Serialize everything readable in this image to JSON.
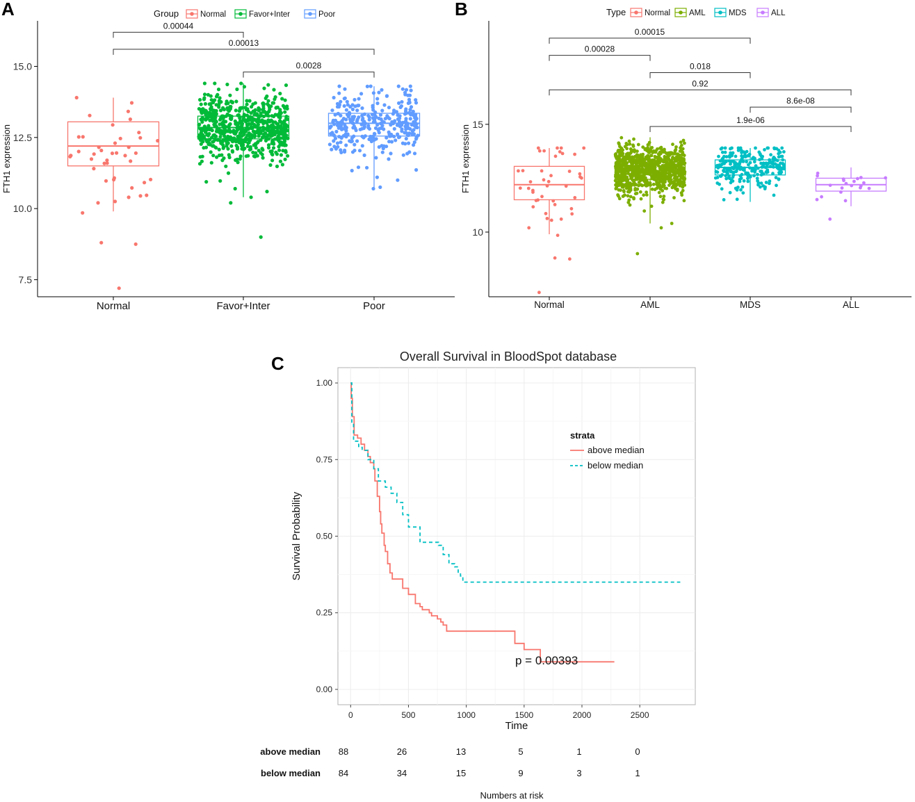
{
  "chart_data": [
    {
      "panel": "A",
      "type": "boxplot",
      "ylabel": "FTH1 expression",
      "ylim": [
        6.9,
        16.6
      ],
      "yticks": [
        "7.5",
        "10.0",
        "12.5",
        "15.0"
      ],
      "ytick_values": [
        7.5,
        10.0,
        12.5,
        15.0
      ],
      "legend": {
        "title": "Group",
        "position": "top",
        "entries": [
          "Normal",
          "Favor+Inter",
          "Poor"
        ]
      },
      "colors": [
        "#f8766d",
        "#00ba38",
        "#619cff"
      ],
      "groups": [
        {
          "name": "Normal",
          "q1": 11.5,
          "median": 12.2,
          "q3": 13.05,
          "lower": 9.9,
          "upper": 13.9,
          "n_points": 40,
          "extra_points": [
            7.2,
            8.75,
            8.8,
            9.85,
            10.2,
            10.25
          ]
        },
        {
          "name": "Favor+Inter",
          "q1": 12.45,
          "median": 12.85,
          "q3": 13.25,
          "lower": 10.4,
          "upper": 14.4,
          "n_points": 700,
          "extra_points": [
            9.0,
            10.2,
            10.4,
            10.6,
            10.7
          ]
        },
        {
          "name": "Poor",
          "q1": 12.55,
          "median": 13.0,
          "q3": 13.35,
          "lower": 10.7,
          "upper": 14.3,
          "n_points": 320,
          "extra_points": [
            10.7,
            10.75,
            11.0
          ]
        }
      ],
      "comparisons": [
        {
          "from": 0,
          "to": 1,
          "label": "0.00044",
          "y": 16.2
        },
        {
          "from": 0,
          "to": 2,
          "label": "0.00013",
          "y": 15.6
        },
        {
          "from": 1,
          "to": 2,
          "label": "0.0028",
          "y": 14.8
        }
      ]
    },
    {
      "panel": "B",
      "type": "boxplot",
      "ylabel": "FTH1 expression",
      "ylim": [
        7.0,
        19.8
      ],
      "yticks": [
        "10",
        "15"
      ],
      "ytick_values": [
        10,
        15
      ],
      "legend": {
        "title": "Type",
        "position": "top",
        "entries": [
          "Normal",
          "AML",
          "MDS",
          "ALL"
        ]
      },
      "colors": [
        "#f8766d",
        "#7cae00",
        "#00bfc4",
        "#c77cff"
      ],
      "groups": [
        {
          "name": "Normal",
          "q1": 11.5,
          "median": 12.2,
          "q3": 13.05,
          "lower": 9.9,
          "upper": 13.9,
          "n_points": 40,
          "extra_points": [
            7.2,
            8.75,
            8.8,
            9.85,
            10.2
          ]
        },
        {
          "name": "AML",
          "q1": 12.45,
          "median": 12.85,
          "q3": 13.25,
          "lower": 10.4,
          "upper": 14.4,
          "n_points": 900,
          "extra_points": [
            9.0,
            10.2,
            10.4
          ]
        },
        {
          "name": "MDS",
          "q1": 12.65,
          "median": 13.0,
          "q3": 13.35,
          "lower": 11.4,
          "upper": 13.9,
          "n_points": 260,
          "extra_points": []
        },
        {
          "name": "ALL",
          "q1": 11.9,
          "median": 12.2,
          "q3": 12.5,
          "lower": 11.2,
          "upper": 13.0,
          "n_points": 20,
          "extra_points": [
            10.6
          ]
        }
      ],
      "comparisons": [
        {
          "from": 0,
          "to": 2,
          "label": "0.00015",
          "y": 19.0
        },
        {
          "from": 0,
          "to": 1,
          "label": "0.00028",
          "y": 18.2
        },
        {
          "from": 1,
          "to": 2,
          "label": "0.018",
          "y": 17.4
        },
        {
          "from": 0,
          "to": 3,
          "label": "0.92",
          "y": 16.6
        },
        {
          "from": 2,
          "to": 3,
          "label": "8.6e-08",
          "y": 15.8
        },
        {
          "from": 1,
          "to": 3,
          "label": "1.9e-06",
          "y": 14.9
        }
      ]
    },
    {
      "panel": "C",
      "type": "line",
      "title": "Overall Survival in BloodSpot database",
      "xlabel": "Time",
      "ylabel": "Survival Probability",
      "xlim": [
        -110,
        2980
      ],
      "ylim": [
        -0.05,
        1.05
      ],
      "xticks": [
        0,
        500,
        1000,
        1500,
        2000,
        2500
      ],
      "xtick_labels": [
        "0",
        "500",
        "1000",
        "1500",
        "2000",
        "2500"
      ],
      "yticks": [
        0.0,
        0.25,
        0.5,
        0.75,
        1.0
      ],
      "ytick_labels": [
        "0.00",
        "0.25",
        "0.50",
        "0.75",
        "1.00"
      ],
      "legend": {
        "title": "strata",
        "position": "top-right",
        "entries": [
          "above median",
          "below median"
        ]
      },
      "annotation": "p = 0.00393",
      "series": [
        {
          "name": "above median",
          "color": "#f8766d",
          "style": "solid",
          "x": [
            0,
            5,
            15,
            30,
            60,
            90,
            120,
            150,
            170,
            200,
            210,
            230,
            250,
            260,
            270,
            290,
            300,
            320,
            340,
            360,
            400,
            450,
            500,
            560,
            600,
            620,
            680,
            700,
            750,
            780,
            800,
            830,
            1400,
            1420,
            1500,
            1640,
            2000,
            2280
          ],
          "y": [
            1.0,
            0.95,
            0.89,
            0.83,
            0.82,
            0.8,
            0.78,
            0.76,
            0.74,
            0.72,
            0.68,
            0.63,
            0.58,
            0.54,
            0.51,
            0.47,
            0.45,
            0.41,
            0.38,
            0.36,
            0.36,
            0.33,
            0.31,
            0.28,
            0.27,
            0.26,
            0.25,
            0.24,
            0.23,
            0.22,
            0.21,
            0.19,
            0.19,
            0.15,
            0.13,
            0.09,
            0.09,
            0.09
          ]
        },
        {
          "name": "below median",
          "color": "#00bfc4",
          "style": "dashed",
          "x": [
            0,
            10,
            25,
            40,
            70,
            100,
            150,
            200,
            240,
            300,
            350,
            400,
            450,
            500,
            560,
            600,
            700,
            760,
            800,
            850,
            900,
            930,
            950,
            970,
            1000,
            1200,
            2850
          ],
          "y": [
            1.0,
            0.87,
            0.81,
            0.81,
            0.79,
            0.78,
            0.75,
            0.72,
            0.68,
            0.66,
            0.64,
            0.61,
            0.57,
            0.53,
            0.53,
            0.48,
            0.48,
            0.47,
            0.44,
            0.41,
            0.4,
            0.38,
            0.37,
            0.35,
            0.35,
            0.35,
            0.35
          ]
        }
      ]
    }
  ],
  "panels": {
    "a": {
      "label": "A"
    },
    "b": {
      "label": "B"
    },
    "c": {
      "label": "C"
    }
  },
  "risk_table": {
    "title": "Numbers at risk",
    "rows": [
      {
        "label": "above median",
        "values": [
          "88",
          "26",
          "13",
          "5",
          "1",
          "0"
        ]
      },
      {
        "label": "below median",
        "values": [
          "84",
          "34",
          "15",
          "9",
          "3",
          "1"
        ]
      }
    ]
  }
}
